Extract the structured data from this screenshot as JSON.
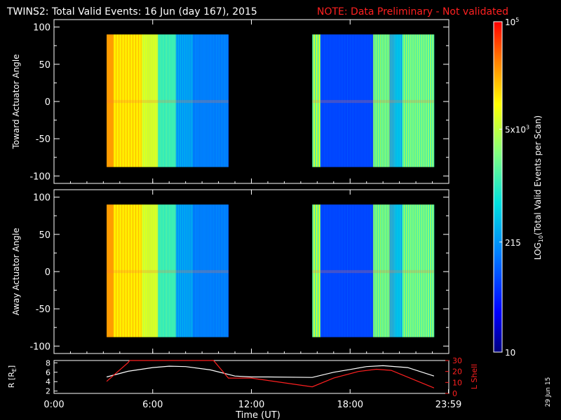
{
  "header": {
    "title": "TWINS2: Total Valid Events: 16 Jun (day 167), 2015",
    "note": "NOTE: Data Preliminary - Not validated"
  },
  "footer": {
    "date_stamp": "29 Jun 15"
  },
  "colors": {
    "note": "#ff2020",
    "lshell": "#ff2020",
    "r": "#ffffff",
    "frame": "#ffffff"
  },
  "chart_data": [
    {
      "type": "heatmap",
      "panel": "top",
      "ylabel": "Toward Actuator Angle",
      "ylim": [
        -110,
        110
      ],
      "yticks": [
        100,
        50,
        0,
        -50,
        -100
      ],
      "xlim": [
        0,
        24
      ],
      "data_blocks": [
        {
          "t_start": 3.2,
          "t_end": 10.6,
          "angle_range": [
            -88,
            90
          ]
        },
        {
          "t_start": 15.7,
          "t_end": 23.1,
          "angle_range": [
            -88,
            90
          ]
        }
      ]
    },
    {
      "type": "heatmap",
      "panel": "bottom",
      "ylabel": "Away Actuator Angle",
      "ylim": [
        -110,
        110
      ],
      "yticks": [
        100,
        50,
        0,
        -50,
        -100
      ],
      "xlim": [
        0,
        24
      ],
      "data_blocks": [
        {
          "t_start": 3.2,
          "t_end": 10.6,
          "angle_range": [
            -88,
            90
          ]
        },
        {
          "t_start": 15.7,
          "t_end": 23.1,
          "angle_range": [
            -88,
            90
          ]
        }
      ]
    },
    {
      "type": "line",
      "panel": "orbit",
      "xlabel": "Time (UT)",
      "xticks": [
        "0:00",
        "6:00",
        "12:00",
        "18:00",
        "23:59"
      ],
      "xtick_values": [
        0,
        6,
        12,
        18,
        23.98
      ],
      "left_axis": {
        "label": "R [R",
        "label_sub": "E",
        "label_end": "]",
        "ticks": [
          8,
          6,
          4,
          2
        ],
        "ylim": [
          1.5,
          8.5
        ]
      },
      "right_axis": {
        "label": "L Shell",
        "ticks": [
          30,
          20,
          10,
          0
        ],
        "ylim": [
          0,
          30
        ]
      },
      "series": [
        {
          "name": "R [RE]",
          "axis": "left",
          "x": [
            3.2,
            4.5,
            6,
            7,
            8,
            9.5,
            11,
            12,
            13,
            15.7,
            17,
            18,
            19,
            20,
            21.5,
            23.1
          ],
          "values": [
            5.0,
            6.2,
            7.0,
            7.3,
            7.2,
            6.5,
            5.2,
            5.0,
            5.0,
            4.9,
            6.0,
            6.6,
            7.2,
            7.4,
            7.0,
            5.2
          ]
        },
        {
          "name": "L Shell",
          "axis": "right",
          "x": [
            3.2,
            4.5,
            4.6,
            9.7,
            10.6,
            12,
            15.7,
            17,
            18.5,
            19.6,
            20.5,
            23.1
          ],
          "values": [
            11,
            28,
            31,
            31,
            14,
            14,
            6,
            14,
            20,
            22,
            21,
            5
          ]
        }
      ]
    },
    {
      "type": "heatmap",
      "panel": "colorbar",
      "label": "LOG",
      "label_sub": "10",
      "label_end": "(Total Valid Events per Scan)",
      "ticks": [
        {
          "mant": "10",
          "sup": "5",
          "value": 100000
        },
        {
          "mant": "5x10",
          "sup": "3",
          "value": 5000
        },
        {
          "mant": "215",
          "sup": "",
          "value": 215
        },
        {
          "mant": "10",
          "sup": "",
          "value": 10
        }
      ]
    }
  ]
}
